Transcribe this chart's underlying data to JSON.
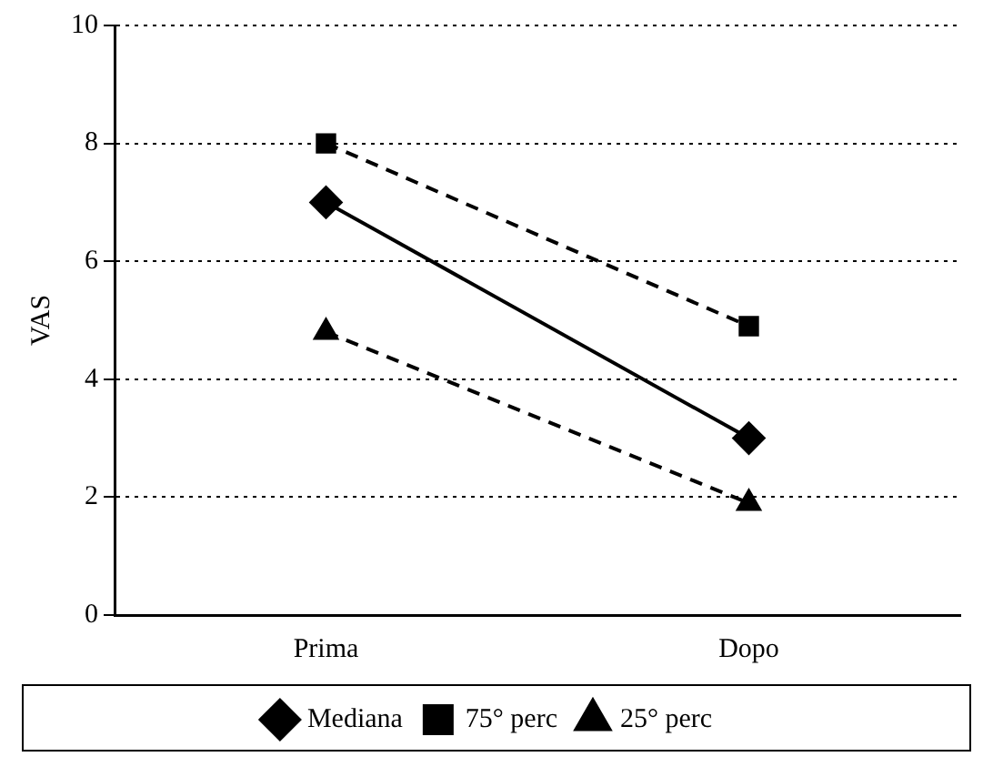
{
  "chart_data": {
    "type": "line",
    "ylabel": "VAS",
    "categories": [
      "Prima",
      "Dopo"
    ],
    "ylim": [
      0,
      10
    ],
    "yticks": [
      0,
      2,
      4,
      6,
      8,
      10
    ],
    "grid": "y",
    "legend": "bottom",
    "series": [
      {
        "name": "Mediana",
        "color": "#000000",
        "values": [
          7,
          3
        ],
        "marker": "diamond",
        "line_style": "solid"
      },
      {
        "name": "75° perc",
        "color": "#000000",
        "values": [
          8,
          4.9
        ],
        "marker": "square",
        "line_style": "dashed"
      },
      {
        "name": "25° perc",
        "color": "#000000",
        "values": [
          4.8,
          1.9
        ],
        "marker": "triangle",
        "line_style": "dashed"
      }
    ]
  }
}
